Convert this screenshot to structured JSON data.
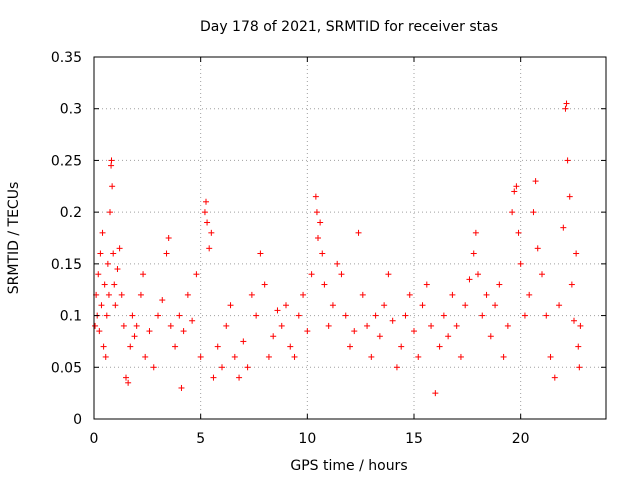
{
  "chart_data": {
    "type": "scatter",
    "title": "Day 178 of 2021, SRMTID for receiver stas",
    "xlabel": "GPS time / hours",
    "ylabel": "SRMTID / TECUs",
    "xlim": [
      0,
      24
    ],
    "ylim": [
      0,
      0.35
    ],
    "x_ticks": [
      0,
      5,
      10,
      15,
      20
    ],
    "x_tick_labels": [
      "0",
      "5",
      "10",
      "15",
      "20"
    ],
    "y_ticks": [
      0,
      0.05,
      0.1,
      0.15,
      0.2,
      0.25,
      0.3,
      0.35
    ],
    "y_tick_labels": [
      "0",
      "0.05",
      "0.1",
      "0.15",
      "0.2",
      "0.25",
      "0.3",
      "0.35"
    ],
    "grid": true,
    "marker": "plus",
    "color": "#ff0000",
    "data_x_range": [
      0,
      22.8
    ],
    "baseline_mean": 0.085,
    "series": [
      {
        "name": "SRMTID",
        "points": [
          [
            0.05,
            0.09
          ],
          [
            0.1,
            0.12
          ],
          [
            0.15,
            0.1
          ],
          [
            0.2,
            0.14
          ],
          [
            0.25,
            0.085
          ],
          [
            0.3,
            0.16
          ],
          [
            0.35,
            0.11
          ],
          [
            0.4,
            0.18
          ],
          [
            0.45,
            0.07
          ],
          [
            0.5,
            0.13
          ],
          [
            0.55,
            0.06
          ],
          [
            0.6,
            0.1
          ],
          [
            0.65,
            0.15
          ],
          [
            0.7,
            0.12
          ],
          [
            0.75,
            0.2
          ],
          [
            0.8,
            0.245
          ],
          [
            0.82,
            0.25
          ],
          [
            0.85,
            0.225
          ],
          [
            0.9,
            0.16
          ],
          [
            0.95,
            0.13
          ],
          [
            1.0,
            0.11
          ],
          [
            1.1,
            0.145
          ],
          [
            1.2,
            0.165
          ],
          [
            1.3,
            0.12
          ],
          [
            1.4,
            0.09
          ],
          [
            1.5,
            0.04
          ],
          [
            1.6,
            0.035
          ],
          [
            1.7,
            0.07
          ],
          [
            1.8,
            0.1
          ],
          [
            1.9,
            0.08
          ],
          [
            2.0,
            0.09
          ],
          [
            2.2,
            0.12
          ],
          [
            2.3,
            0.14
          ],
          [
            2.4,
            0.06
          ],
          [
            2.6,
            0.085
          ],
          [
            2.8,
            0.05
          ],
          [
            3.0,
            0.1
          ],
          [
            3.2,
            0.115
          ],
          [
            3.4,
            0.16
          ],
          [
            3.5,
            0.175
          ],
          [
            3.6,
            0.09
          ],
          [
            3.8,
            0.07
          ],
          [
            4.0,
            0.1
          ],
          [
            4.1,
            0.03
          ],
          [
            4.2,
            0.085
          ],
          [
            4.4,
            0.12
          ],
          [
            4.6,
            0.095
          ],
          [
            4.8,
            0.14
          ],
          [
            5.0,
            0.06
          ],
          [
            5.2,
            0.2
          ],
          [
            5.25,
            0.21
          ],
          [
            5.3,
            0.19
          ],
          [
            5.4,
            0.165
          ],
          [
            5.5,
            0.18
          ],
          [
            5.6,
            0.04
          ],
          [
            5.8,
            0.07
          ],
          [
            6.0,
            0.05
          ],
          [
            6.2,
            0.09
          ],
          [
            6.4,
            0.11
          ],
          [
            6.6,
            0.06
          ],
          [
            6.8,
            0.04
          ],
          [
            7.0,
            0.075
          ],
          [
            7.2,
            0.05
          ],
          [
            7.4,
            0.12
          ],
          [
            7.6,
            0.1
          ],
          [
            7.8,
            0.16
          ],
          [
            8.0,
            0.13
          ],
          [
            8.2,
            0.06
          ],
          [
            8.4,
            0.08
          ],
          [
            8.6,
            0.105
          ],
          [
            8.8,
            0.09
          ],
          [
            9.0,
            0.11
          ],
          [
            9.2,
            0.07
          ],
          [
            9.4,
            0.06
          ],
          [
            9.6,
            0.1
          ],
          [
            9.8,
            0.12
          ],
          [
            10.0,
            0.085
          ],
          [
            10.2,
            0.14
          ],
          [
            10.4,
            0.215
          ],
          [
            10.45,
            0.2
          ],
          [
            10.5,
            0.175
          ],
          [
            10.6,
            0.19
          ],
          [
            10.7,
            0.16
          ],
          [
            10.8,
            0.13
          ],
          [
            11.0,
            0.09
          ],
          [
            11.2,
            0.11
          ],
          [
            11.4,
            0.15
          ],
          [
            11.6,
            0.14
          ],
          [
            11.8,
            0.1
          ],
          [
            12.0,
            0.07
          ],
          [
            12.2,
            0.085
          ],
          [
            12.4,
            0.18
          ],
          [
            12.6,
            0.12
          ],
          [
            12.8,
            0.09
          ],
          [
            13.0,
            0.06
          ],
          [
            13.2,
            0.1
          ],
          [
            13.4,
            0.08
          ],
          [
            13.6,
            0.11
          ],
          [
            13.8,
            0.14
          ],
          [
            14.0,
            0.095
          ],
          [
            14.2,
            0.05
          ],
          [
            14.4,
            0.07
          ],
          [
            14.6,
            0.1
          ],
          [
            14.8,
            0.12
          ],
          [
            15.0,
            0.085
          ],
          [
            15.2,
            0.06
          ],
          [
            15.4,
            0.11
          ],
          [
            15.6,
            0.13
          ],
          [
            15.8,
            0.09
          ],
          [
            16.0,
            0.025
          ],
          [
            16.2,
            0.07
          ],
          [
            16.4,
            0.1
          ],
          [
            16.6,
            0.08
          ],
          [
            16.8,
            0.12
          ],
          [
            17.0,
            0.09
          ],
          [
            17.2,
            0.06
          ],
          [
            17.4,
            0.11
          ],
          [
            17.6,
            0.135
          ],
          [
            17.8,
            0.16
          ],
          [
            17.9,
            0.18
          ],
          [
            18.0,
            0.14
          ],
          [
            18.2,
            0.1
          ],
          [
            18.4,
            0.12
          ],
          [
            18.6,
            0.08
          ],
          [
            18.8,
            0.11
          ],
          [
            19.0,
            0.13
          ],
          [
            19.2,
            0.06
          ],
          [
            19.4,
            0.09
          ],
          [
            19.6,
            0.2
          ],
          [
            19.7,
            0.22
          ],
          [
            19.8,
            0.225
          ],
          [
            19.9,
            0.18
          ],
          [
            20.0,
            0.15
          ],
          [
            20.2,
            0.1
          ],
          [
            20.4,
            0.12
          ],
          [
            20.6,
            0.2
          ],
          [
            20.7,
            0.23
          ],
          [
            20.8,
            0.165
          ],
          [
            21.0,
            0.14
          ],
          [
            21.2,
            0.1
          ],
          [
            21.4,
            0.06
          ],
          [
            21.6,
            0.04
          ],
          [
            21.8,
            0.11
          ],
          [
            22.0,
            0.185
          ],
          [
            22.1,
            0.3
          ],
          [
            22.15,
            0.305
          ],
          [
            22.2,
            0.25
          ],
          [
            22.3,
            0.215
          ],
          [
            22.4,
            0.13
          ],
          [
            22.5,
            0.095
          ],
          [
            22.6,
            0.16
          ],
          [
            22.7,
            0.07
          ],
          [
            22.75,
            0.05
          ],
          [
            22.8,
            0.09
          ]
        ]
      }
    ]
  }
}
